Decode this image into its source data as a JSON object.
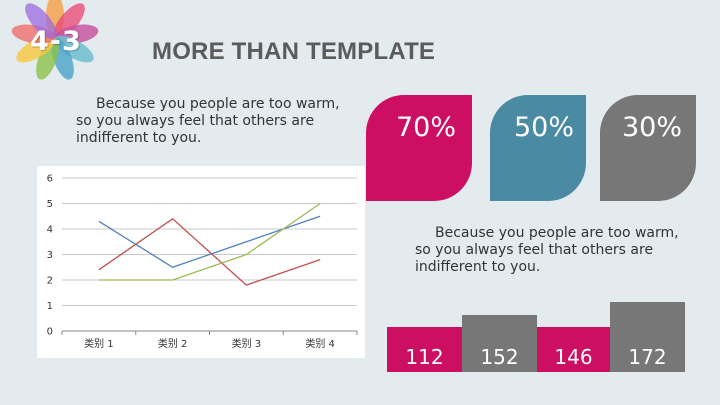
{
  "logo": {
    "number": "4-3"
  },
  "title": "MORE THAN TEMPLATE",
  "paragraph_left": "Because you people are too warm, so you always feel that others are indifferent to you.",
  "paragraph_right": "Because you people are too warm, so you always feel that others are indifferent to you.",
  "stats": [
    {
      "value": "70%",
      "color": "#cd0f63"
    },
    {
      "value": "50%",
      "color": "#4a8aa3"
    },
    {
      "value": "30%",
      "color": "#777777"
    }
  ],
  "bars": [
    {
      "value": 112,
      "color": "#cd0f63"
    },
    {
      "value": 152,
      "color": "#777777"
    },
    {
      "value": 146,
      "color": "#cd0f63"
    },
    {
      "value": 172,
      "color": "#777777"
    }
  ],
  "chart_data": {
    "type": "line",
    "categories": [
      "类别 1",
      "类别 2",
      "类别 3",
      "类别 4"
    ],
    "ylim": [
      0,
      6
    ],
    "yticks": [
      "0",
      "1",
      "2",
      "3",
      "4",
      "5",
      "6"
    ],
    "grid": true,
    "series": [
      {
        "color": "#4f81bd",
        "values": [
          4.3,
          2.5,
          3.5,
          4.5
        ]
      },
      {
        "color": "#c0504d",
        "values": [
          2.4,
          4.4,
          1.8,
          2.8
        ]
      },
      {
        "color": "#9bbb59",
        "values": [
          2.0,
          2.0,
          3.0,
          5.0
        ]
      }
    ]
  }
}
